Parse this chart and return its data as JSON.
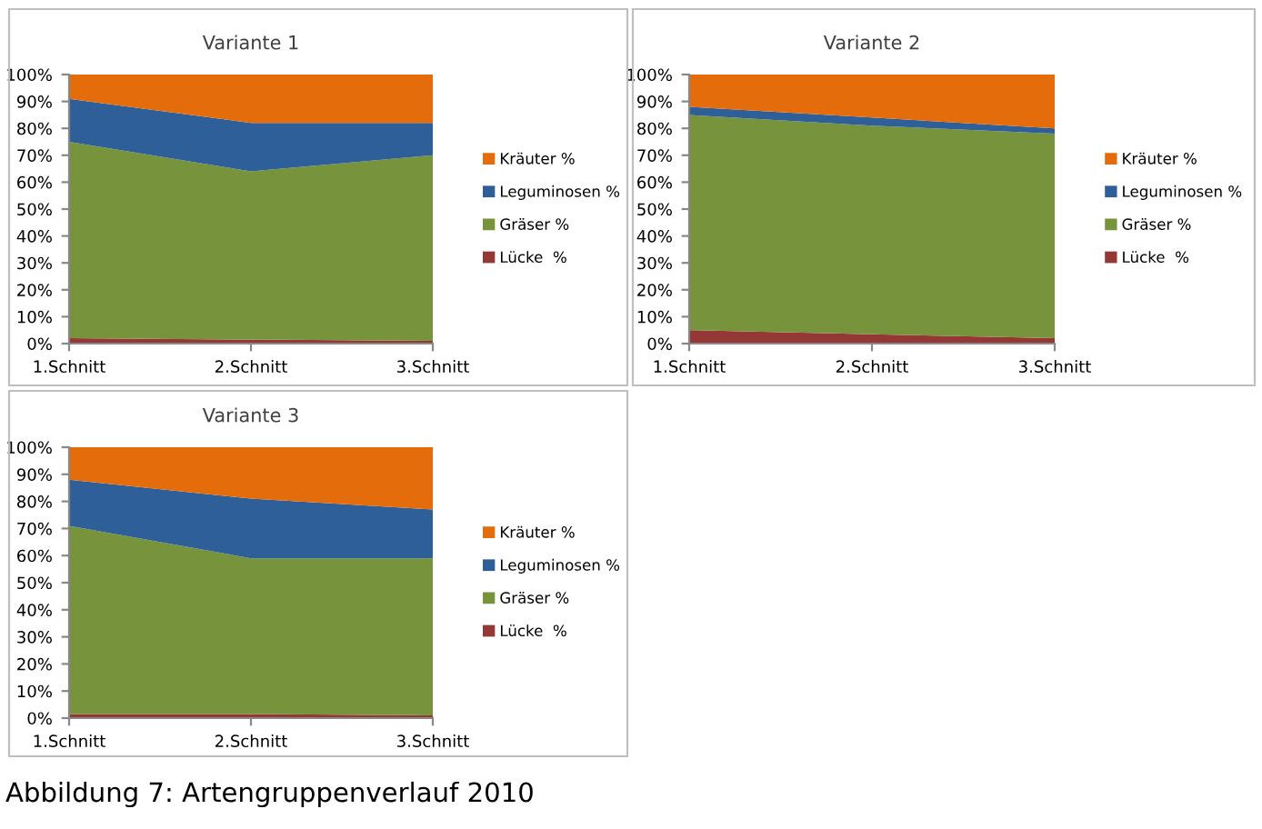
{
  "chart_data": [
    {
      "type": "area",
      "title": "Variante 1",
      "stacked": true,
      "legend": "right",
      "grid": false,
      "categories": [
        "1.Schnitt",
        "2.Schnitt",
        "3.Schnitt"
      ],
      "ylim": [
        0,
        100
      ],
      "yticks": [
        {
          "value": 0,
          "label": "0%"
        },
        {
          "value": 10,
          "label": "10%"
        },
        {
          "value": 20,
          "label": "20%"
        },
        {
          "value": 30,
          "label": "30%"
        },
        {
          "value": 40,
          "label": "40%"
        },
        {
          "value": 50,
          "label": "50%"
        },
        {
          "value": 60,
          "label": "60%"
        },
        {
          "value": 70,
          "label": "70%"
        },
        {
          "value": 80,
          "label": "80%"
        },
        {
          "value": 90,
          "label": "90%"
        },
        {
          "value": 100,
          "label": "100%"
        }
      ],
      "series": [
        {
          "name": "Lücke  %",
          "color": "#953735",
          "values": [
            2,
            1.5,
            1
          ]
        },
        {
          "name": "Gräser %",
          "color": "#77933c",
          "values": [
            73,
            62.5,
            69
          ]
        },
        {
          "name": "Leguminosen %",
          "color": "#2f5f98",
          "values": [
            16,
            18,
            12
          ]
        },
        {
          "name": "Kräuter %",
          "color": "#e46c0a",
          "values": [
            9,
            18,
            18
          ]
        }
      ]
    },
    {
      "type": "area",
      "title": "Variante 2",
      "stacked": true,
      "legend": "right",
      "grid": false,
      "categories": [
        "1.Schnitt",
        "2.Schnitt",
        "3.Schnitt"
      ],
      "ylim": [
        0,
        100
      ],
      "yticks": [
        {
          "value": 0,
          "label": "0%"
        },
        {
          "value": 10,
          "label": "10%"
        },
        {
          "value": 20,
          "label": "20%"
        },
        {
          "value": 30,
          "label": "30%"
        },
        {
          "value": 40,
          "label": "40%"
        },
        {
          "value": 50,
          "label": "50%"
        },
        {
          "value": 60,
          "label": "60%"
        },
        {
          "value": 70,
          "label": "70%"
        },
        {
          "value": 80,
          "label": "80%"
        },
        {
          "value": 90,
          "label": "90%"
        },
        {
          "value": 100,
          "label": "100%"
        }
      ],
      "series": [
        {
          "name": "Lücke  %",
          "color": "#953735",
          "values": [
            5,
            3.5,
            2
          ]
        },
        {
          "name": "Gräser %",
          "color": "#77933c",
          "values": [
            80,
            77.5,
            76
          ]
        },
        {
          "name": "Leguminosen %",
          "color": "#2f5f98",
          "values": [
            3,
            3,
            2
          ]
        },
        {
          "name": "Kräuter %",
          "color": "#e46c0a",
          "values": [
            12,
            16,
            20
          ]
        }
      ]
    },
    {
      "type": "area",
      "title": "Variante 3",
      "stacked": true,
      "legend": "right",
      "grid": false,
      "categories": [
        "1.Schnitt",
        "2.Schnitt",
        "3.Schnitt"
      ],
      "ylim": [
        0,
        100
      ],
      "yticks": [
        {
          "value": 0,
          "label": "0%"
        },
        {
          "value": 10,
          "label": "10%"
        },
        {
          "value": 20,
          "label": "20%"
        },
        {
          "value": 30,
          "label": "30%"
        },
        {
          "value": 40,
          "label": "40%"
        },
        {
          "value": 50,
          "label": "50%"
        },
        {
          "value": 60,
          "label": "60%"
        },
        {
          "value": 70,
          "label": "70%"
        },
        {
          "value": 80,
          "label": "80%"
        },
        {
          "value": 90,
          "label": "90%"
        },
        {
          "value": 100,
          "label": "100%"
        }
      ],
      "series": [
        {
          "name": "Lücke  %",
          "color": "#953735",
          "values": [
            1.5,
            1.5,
            1
          ]
        },
        {
          "name": "Gräser %",
          "color": "#77933c",
          "values": [
            69.5,
            57.5,
            58
          ]
        },
        {
          "name": "Leguminosen %",
          "color": "#2f5f98",
          "values": [
            17,
            22,
            18
          ]
        },
        {
          "name": "Kräuter %",
          "color": "#e46c0a",
          "values": [
            12,
            19,
            23
          ]
        }
      ],
      "annotations": [
        "Abbildung 7: Artengruppenverlauf 2010"
      ]
    }
  ]
}
